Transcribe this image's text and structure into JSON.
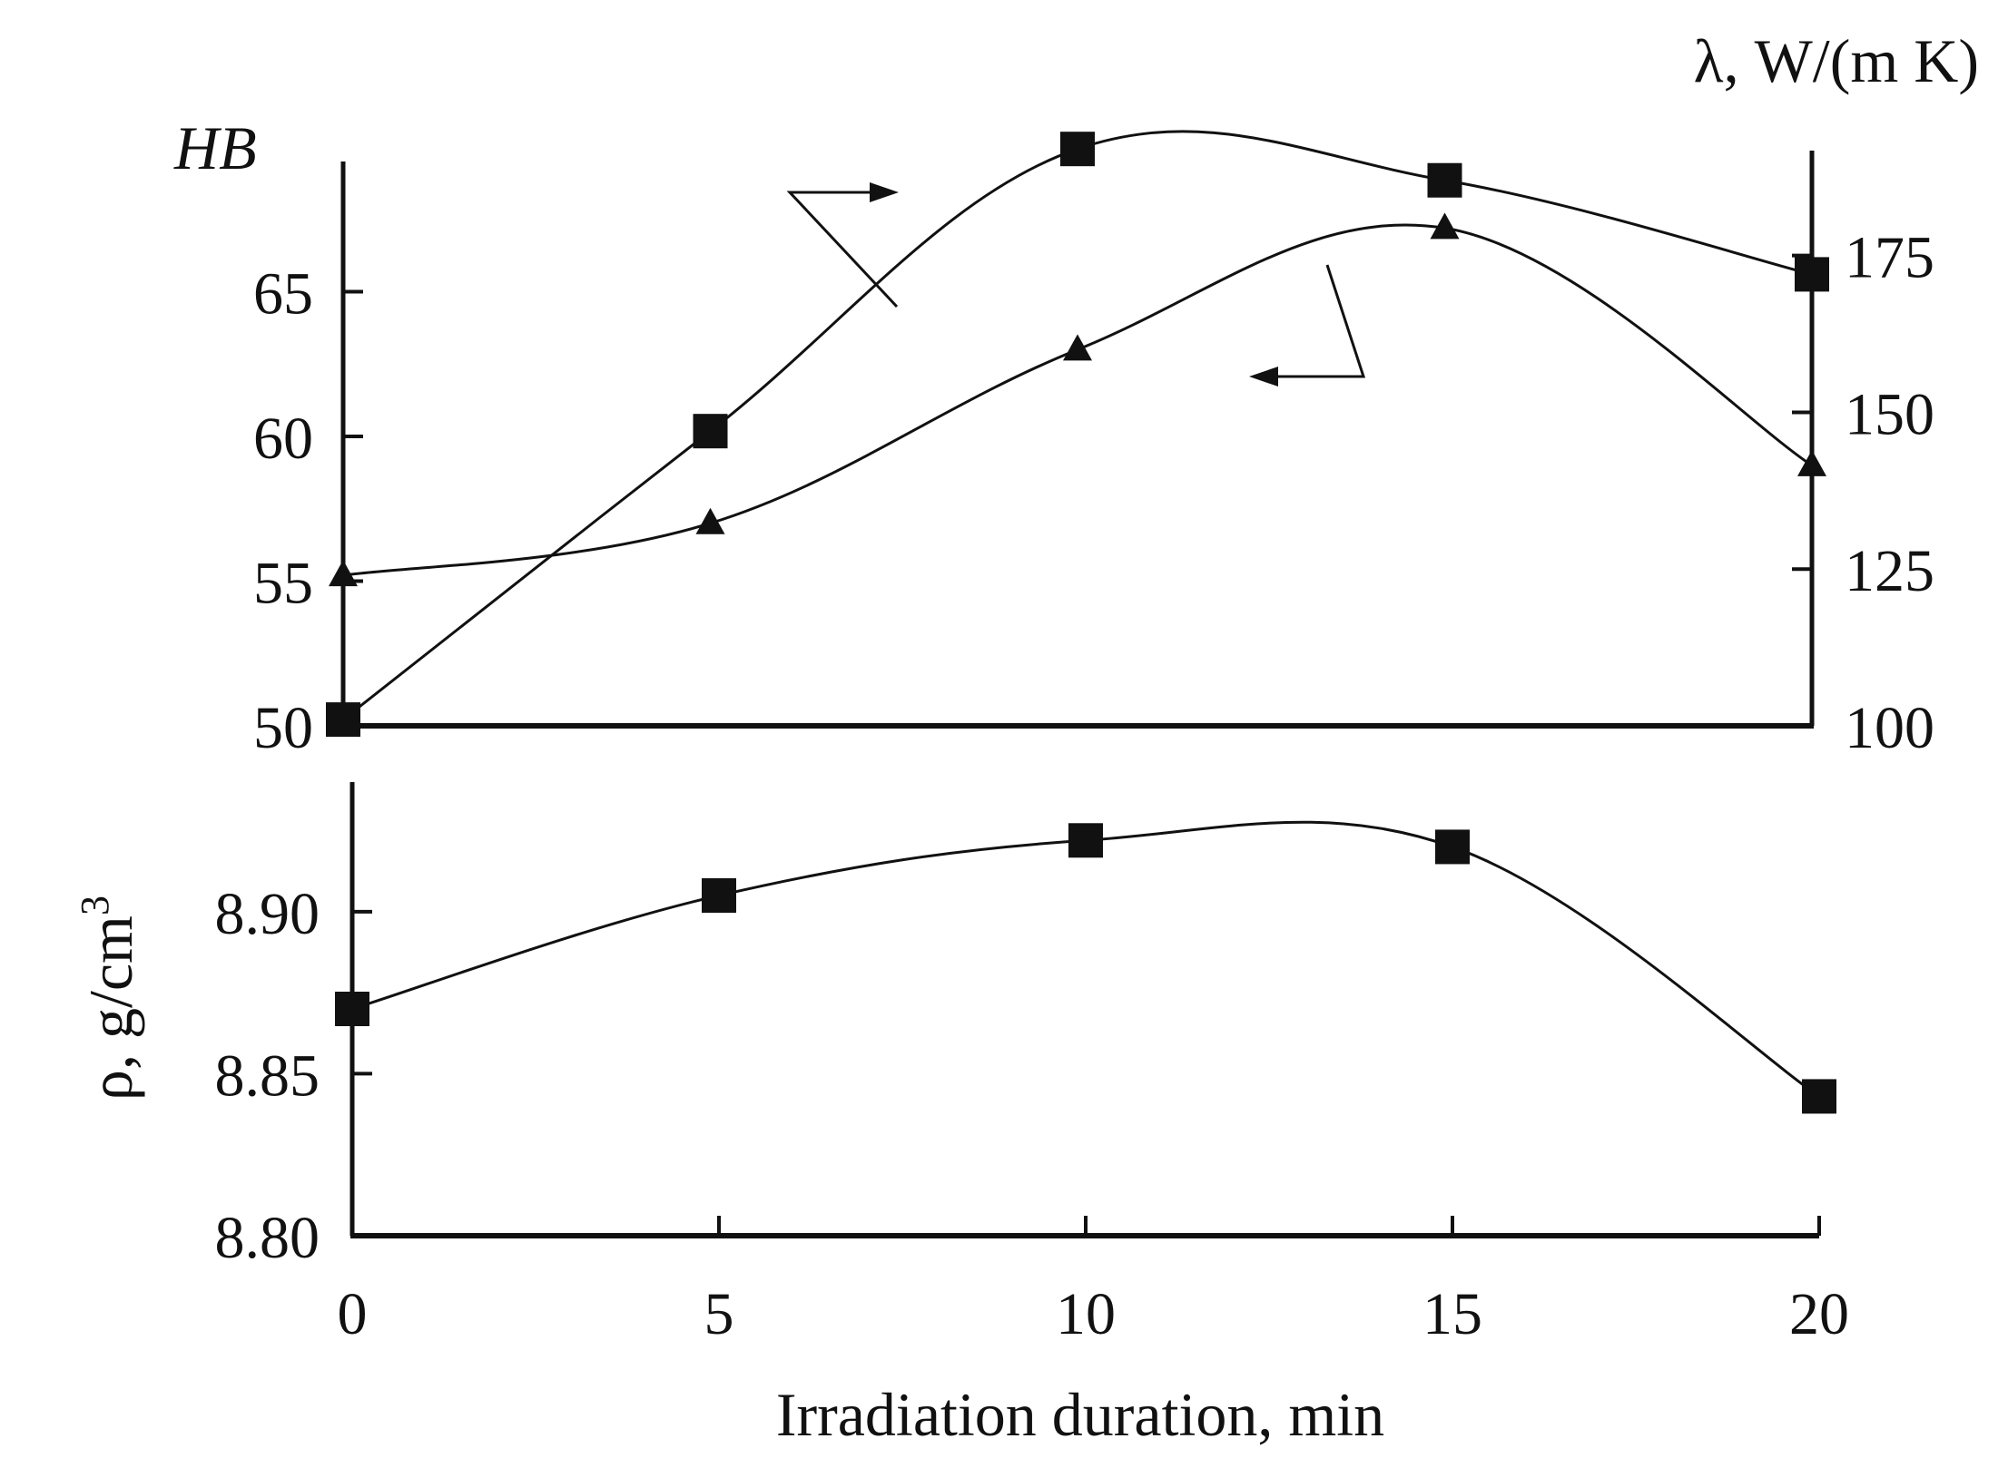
{
  "colors": {
    "ink": "#111111",
    "background": "#ffffff"
  },
  "chart_data": [
    {
      "type": "line",
      "panel": "top",
      "x": [
        0,
        5,
        10,
        15,
        20
      ],
      "x_ticks": [
        "0",
        "5",
        "10",
        "15",
        "20"
      ],
      "y_left": {
        "label": "HB",
        "range": [
          50,
          69.5
        ],
        "ticks": [
          "50",
          "55",
          "60",
          "65"
        ],
        "tick_values": [
          50,
          55,
          60,
          65
        ]
      },
      "y_right": {
        "label": "λ, W/(m K)",
        "range": [
          100,
          190
        ],
        "ticks": [
          "100",
          "125",
          "150",
          "175"
        ],
        "tick_values": [
          100,
          125,
          150,
          175
        ]
      },
      "series": [
        {
          "name": "hardness",
          "axis": "left",
          "marker": "triangle",
          "x": [
            0,
            5,
            10,
            15,
            20
          ],
          "values": [
            55.2,
            57.0,
            63.0,
            67.2,
            59.0
          ]
        },
        {
          "name": "thermal conductivity",
          "axis": "right",
          "marker": "square",
          "x": [
            0,
            5,
            10,
            15,
            20
          ],
          "values": [
            101,
            147,
            192,
            187,
            172
          ]
        }
      ],
      "annotations": [
        {
          "type": "arrow",
          "series": "thermal conductivity",
          "points_to": "right axis"
        },
        {
          "type": "arrow",
          "series": "hardness",
          "points_to": "left axis"
        }
      ]
    },
    {
      "type": "line",
      "panel": "bottom",
      "x": [
        0,
        5,
        10,
        15,
        20
      ],
      "x_ticks": [
        "0",
        "5",
        "10",
        "15",
        "20"
      ],
      "xlabel": "Irradiation duration, min",
      "y": {
        "label": "ρ, g/cm",
        "label_superscript": "3",
        "range": [
          8.8,
          8.94
        ],
        "ticks": [
          "8.80",
          "8.85",
          "8.90"
        ],
        "tick_values": [
          8.8,
          8.85,
          8.9
        ]
      },
      "series": [
        {
          "name": "density",
          "marker": "square",
          "x": [
            0,
            5,
            10,
            15,
            20
          ],
          "values": [
            8.87,
            8.905,
            8.922,
            8.92,
            8.843
          ]
        }
      ]
    }
  ]
}
